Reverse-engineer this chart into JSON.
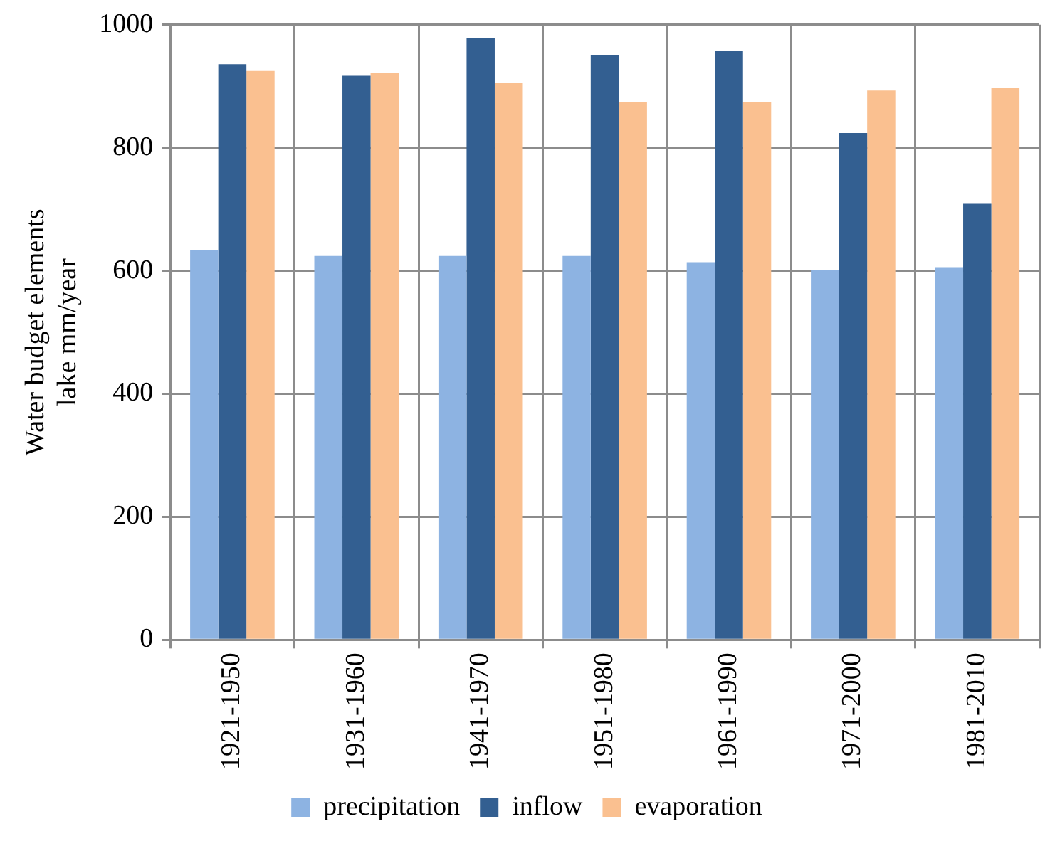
{
  "chart_data": {
    "type": "bar",
    "ylabel": "Water budget elements\nlake mm/year",
    "categories": [
      "1921-1950",
      "1931-1960",
      "1941-1970",
      "1951-1980",
      "1961-1990",
      "1971-2000",
      "1981-2010"
    ],
    "series": [
      {
        "name": "precipitation",
        "color": "#8db3e2",
        "values": [
          633,
          624,
          624,
          624,
          614,
          601,
          606
        ]
      },
      {
        "name": "inflow",
        "color": "#335f91",
        "values": [
          936,
          917,
          978,
          951,
          958,
          824,
          709
        ]
      },
      {
        "name": "evaporation",
        "color": "#fac090",
        "values": [
          925,
          921,
          906,
          874,
          874,
          893,
          898
        ]
      }
    ],
    "ylim": [
      0,
      1000
    ],
    "yticks": [
      0,
      200,
      400,
      600,
      800,
      1000
    ],
    "grid": true,
    "legend": "bottom"
  }
}
